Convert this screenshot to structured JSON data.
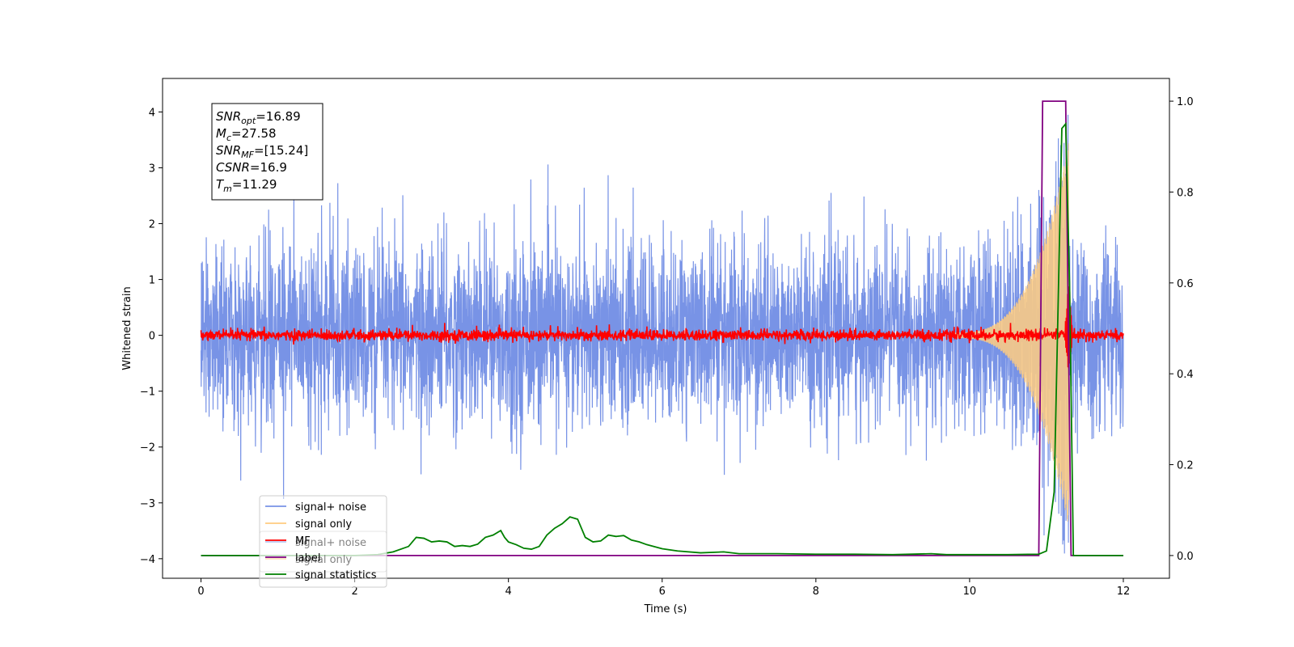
{
  "chart_data": {
    "type": "line",
    "title": "",
    "xlabel": "Time (s)",
    "ylabel": "Whitened strain",
    "xlim": [
      -0.5,
      12.6
    ],
    "ylim": [
      -4.35,
      4.6
    ],
    "y2lim": [
      -0.05,
      1.05
    ],
    "xticks": [
      0,
      2,
      4,
      6,
      8,
      10,
      12
    ],
    "yticks": [
      -4,
      -3,
      -2,
      -1,
      0,
      1,
      2,
      3,
      4
    ],
    "y2ticks": [
      0.0,
      0.2,
      0.4,
      0.6,
      0.8,
      1.0
    ],
    "grid": false,
    "legend_placement": "lower-left",
    "info_box": [
      {
        "main": "SNR",
        "sub": "opt",
        "value": "=16.89"
      },
      {
        "main": "M",
        "sub": "c",
        "value": "=27.58"
      },
      {
        "main": "SNR",
        "sub": "MF",
        "value": "=[15.24]"
      },
      {
        "main": "CSNR",
        "sub": "",
        "value": "=16.9"
      },
      {
        "main": "T",
        "sub": "m",
        "value": "=11.29"
      }
    ],
    "legends": [
      [
        {
          "name": "signal+ noise",
          "color": "#7893e6"
        },
        {
          "name": "signal only",
          "color": "#ffcc80"
        },
        {
          "name": "MF",
          "color": "#ff0000"
        },
        {
          "name": "label",
          "color": "#800080"
        },
        {
          "name": "signal statistics",
          "color": "#008000"
        }
      ],
      [
        {
          "name": "signal+ noise",
          "color": "#7893e6"
        },
        {
          "name": "signal only",
          "color": "#ffcc80"
        }
      ]
    ],
    "series": [
      {
        "name": "signal+ noise",
        "color": "#7893e6",
        "axis": "left",
        "x_start": 0,
        "x_end": 12,
        "noise_std": 0.8,
        "envelope_x": [
          0,
          1,
          2,
          3,
          4,
          5,
          6,
          7,
          8,
          9,
          10,
          11,
          12
        ],
        "envelope_top": [
          2.5,
          3.0,
          3.5,
          3.1,
          3.2,
          3.3,
          3.3,
          3.4,
          3.4,
          3.2,
          3.3,
          3.2,
          2.1
        ],
        "envelope_bottom": [
          -2.0,
          -3.2,
          -2.9,
          -2.6,
          -2.9,
          -2.9,
          -3.1,
          -2.8,
          -2.8,
          -2.7,
          -2.6,
          -2.7,
          -2.8
        ]
      },
      {
        "name": "signal only",
        "color": "#ffcc80",
        "axis": "left",
        "chirp_start": 9.8,
        "merger_time": 11.29,
        "peak_amplitude": 3.4
      },
      {
        "name": "MF",
        "color": "#ff0000",
        "axis": "left",
        "x_start": 0,
        "x_end": 12,
        "noise_std": 0.05,
        "peak_x": 11.29,
        "peak_value": 1.0
      },
      {
        "name": "label",
        "color": "#800080",
        "axis": "right",
        "x": [
          0,
          10.9,
          10.95,
          11.25,
          11.32,
          12
        ],
        "y": [
          0,
          0,
          1.0,
          1.0,
          0,
          0
        ]
      },
      {
        "name": "signal statistics",
        "color": "#008000",
        "axis": "right",
        "x": [
          0,
          0.3,
          0.6,
          1.0,
          1.5,
          2.0,
          2.3,
          2.5,
          2.7,
          2.8,
          2.9,
          3.0,
          3.1,
          3.2,
          3.3,
          3.4,
          3.5,
          3.6,
          3.7,
          3.8,
          3.9,
          3.95,
          4.0,
          4.1,
          4.2,
          4.3,
          4.4,
          4.5,
          4.6,
          4.7,
          4.8,
          4.9,
          5.0,
          5.1,
          5.2,
          5.3,
          5.4,
          5.5,
          5.6,
          5.7,
          5.8,
          6.0,
          6.2,
          6.5,
          6.8,
          7.0,
          7.5,
          8.0,
          8.5,
          9.0,
          9.5,
          9.7,
          10.0,
          10.5,
          10.9,
          11.0,
          11.1,
          11.2,
          11.25,
          11.3,
          11.35,
          11.5,
          12.0
        ],
        "y": [
          0.0,
          0.0,
          0.0,
          0.0,
          0.0,
          0.0,
          0.002,
          0.008,
          0.02,
          0.04,
          0.038,
          0.03,
          0.032,
          0.03,
          0.02,
          0.022,
          0.02,
          0.025,
          0.04,
          0.045,
          0.055,
          0.04,
          0.03,
          0.024,
          0.016,
          0.014,
          0.02,
          0.045,
          0.06,
          0.07,
          0.085,
          0.08,
          0.04,
          0.03,
          0.032,
          0.045,
          0.042,
          0.044,
          0.034,
          0.03,
          0.024,
          0.015,
          0.01,
          0.006,
          0.008,
          0.004,
          0.004,
          0.003,
          0.003,
          0.002,
          0.004,
          0.002,
          0.002,
          0.002,
          0.003,
          0.01,
          0.14,
          0.94,
          0.95,
          0.6,
          0.0,
          0.0,
          0.0
        ]
      }
    ]
  }
}
